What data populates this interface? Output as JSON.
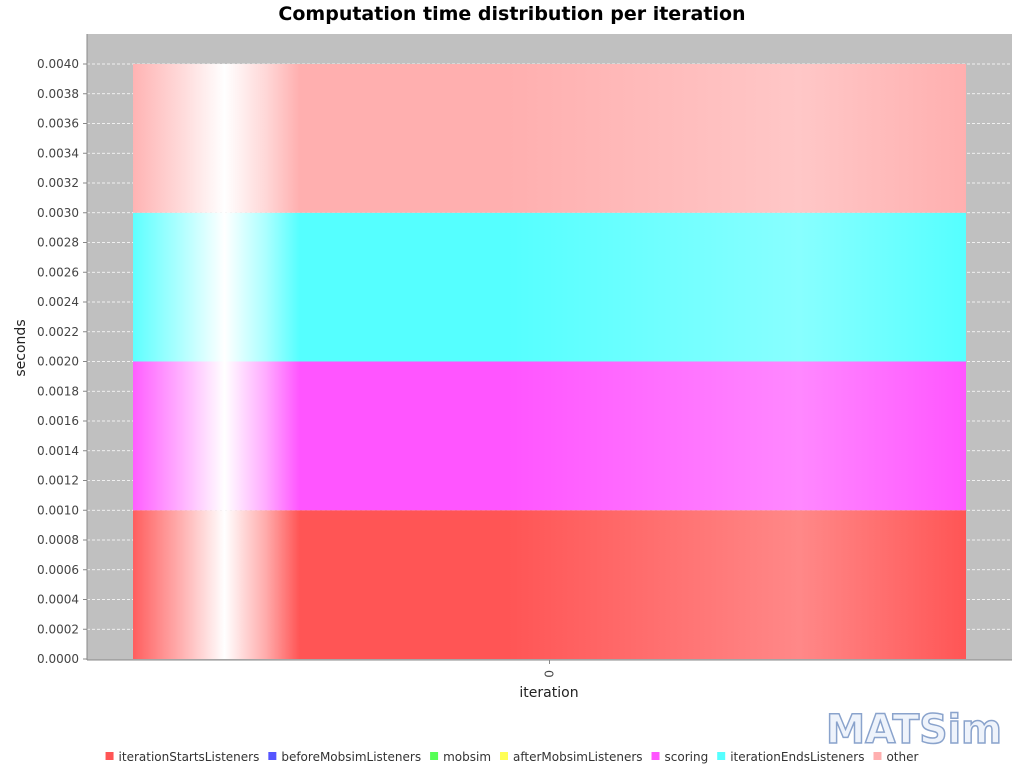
{
  "chart_data": {
    "type": "bar",
    "stacked": true,
    "title": "Computation time distribution per iteration",
    "xlabel": "iteration",
    "ylabel": "seconds",
    "categories": [
      "0"
    ],
    "ylim": [
      0,
      0.004
    ],
    "yticks": [
      "0.0000",
      "0.0002",
      "0.0004",
      "0.0006",
      "0.0008",
      "0.0010",
      "0.0012",
      "0.0014",
      "0.0016",
      "0.0018",
      "0.0020",
      "0.0022",
      "0.0024",
      "0.0026",
      "0.0028",
      "0.0030",
      "0.0032",
      "0.0034",
      "0.0036",
      "0.0038",
      "0.0040"
    ],
    "grid": true,
    "legend_position": "bottom",
    "series": [
      {
        "name": "iterationStartsListeners",
        "color": "#ff5555",
        "values": [
          0.001
        ]
      },
      {
        "name": "beforeMobsimListeners",
        "color": "#5555ff",
        "values": [
          0
        ]
      },
      {
        "name": "mobsim",
        "color": "#55ff55",
        "values": [
          0
        ]
      },
      {
        "name": "afterMobsimListeners",
        "color": "#ffff55",
        "values": [
          0
        ]
      },
      {
        "name": "scoring",
        "color": "#ff55ff",
        "values": [
          0.001
        ]
      },
      {
        "name": "iterationEndsListeners",
        "color": "#55ffff",
        "values": [
          0.001
        ]
      },
      {
        "name": "other",
        "color": "#ffafaf",
        "values": [
          0.001
        ]
      }
    ]
  },
  "logo": {
    "text": "MATSim"
  },
  "colors": {
    "plot_background": "#c0c0c0",
    "gridline": "#ffffff"
  }
}
